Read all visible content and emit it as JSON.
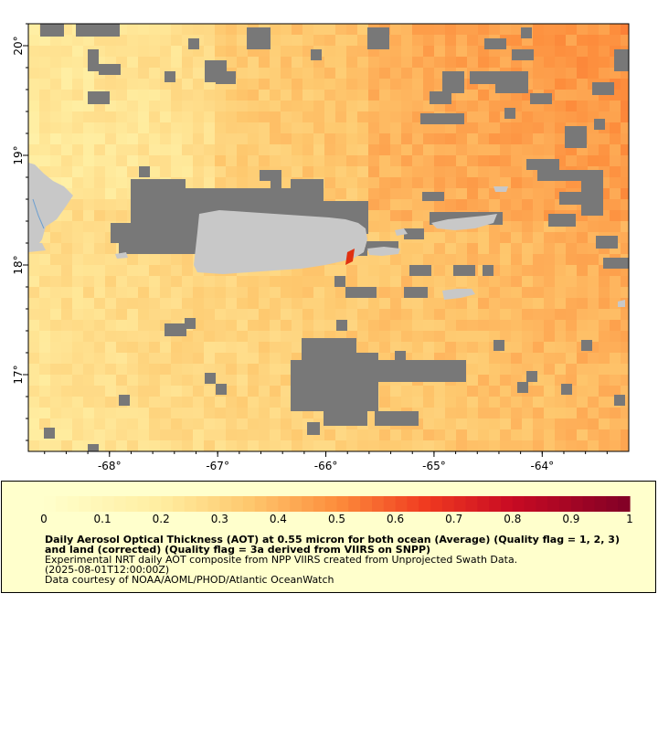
{
  "map": {
    "lon_ticks": [
      "-68°",
      "-67°",
      "-66°",
      "-65°",
      "-64°"
    ],
    "lat_ticks": [
      "20°",
      "19°",
      "18°",
      "17°"
    ],
    "extent": {
      "lon_min": -68.75,
      "lon_max": -63.2,
      "lat_min": 16.3,
      "lat_max": 20.2
    },
    "colors": {
      "land": "#c8c8c8",
      "nodata": "#787878",
      "water_line": "#6a9ed0"
    }
  },
  "legend": {
    "ticks": [
      "0",
      "0.1",
      "0.2",
      "0.3",
      "0.4",
      "0.5",
      "0.6",
      "0.7",
      "0.8",
      "0.9",
      "1"
    ],
    "range": [
      0,
      1
    ],
    "colormap": "YlOrRd"
  },
  "caption": {
    "title": "Daily Aerosol Optical Thickness (AOT) at 0.55 micron for both ocean (Average) (Quality flag = 1, 2, 3) and land (corrected) (Quality flag = 3a derived from VIIRS on SNPP)",
    "line2": "Experimental NRT daily AOT composite from NPP VIIRS created from Unprojected Swath Data.",
    "time": "(2025-08-01T12:00:00Z)",
    "credit": "Data courtesy of NOAA/AOML/PHOD/Atlantic OceanWatch"
  }
}
